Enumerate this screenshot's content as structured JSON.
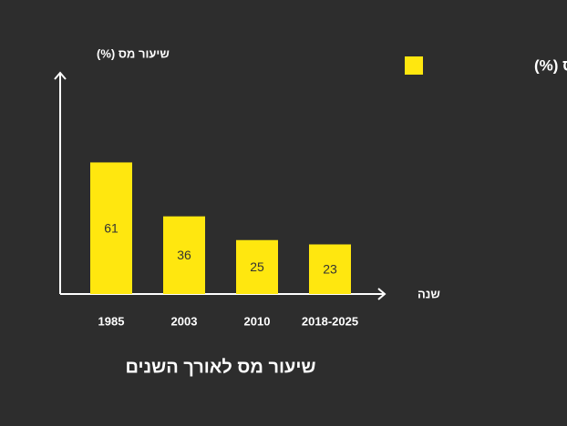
{
  "chart_data": {
    "type": "bar",
    "title": "שיעור מס לאורך השנים",
    "x_label": "שנה",
    "y_label": "שיעור מס (%)",
    "categories": [
      "1985",
      "2003",
      "2010",
      "2018-2025"
    ],
    "series": [
      {
        "name": "שיעור מס (%)",
        "color": "#ffe70f",
        "values": [
          61,
          36,
          25,
          23
        ]
      }
    ],
    "ylim": [
      0,
      100
    ],
    "grid": false,
    "legend": "top-right"
  }
}
